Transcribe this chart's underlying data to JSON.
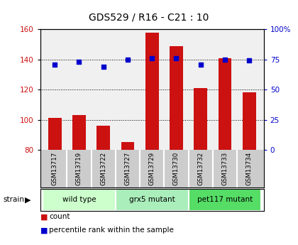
{
  "title": "GDS529 / R16 - C21 : 10",
  "samples": [
    "GSM13717",
    "GSM13719",
    "GSM13722",
    "GSM13727",
    "GSM13729",
    "GSM13730",
    "GSM13732",
    "GSM13733",
    "GSM13734"
  ],
  "counts": [
    101,
    103,
    96,
    85,
    158,
    149,
    121,
    141,
    118
  ],
  "percentiles": [
    71,
    73,
    69,
    75,
    76,
    76,
    71,
    75,
    74
  ],
  "groups": [
    {
      "label": "wild type",
      "start": 0,
      "end": 3,
      "color": "#ccffcc"
    },
    {
      "label": "grx5 mutant",
      "start": 3,
      "end": 6,
      "color": "#aaeebb"
    },
    {
      "label": "pet117 mutant",
      "start": 6,
      "end": 9,
      "color": "#55dd66"
    }
  ],
  "ylim_left": [
    80,
    160
  ],
  "ylim_right": [
    0,
    100
  ],
  "yticks_left": [
    80,
    100,
    120,
    140,
    160
  ],
  "yticks_right": [
    0,
    25,
    50,
    75,
    100
  ],
  "ytick_labels_right": [
    "0",
    "25",
    "50",
    "75",
    "100%"
  ],
  "bar_color": "#cc1111",
  "scatter_color": "#0000cc",
  "bar_width": 0.55,
  "grid_color": "black",
  "plot_bg_color": "#f0f0f0",
  "sample_bg_color": "#cccccc",
  "legend_count_color": "#cc1111",
  "legend_pct_color": "#0000cc"
}
